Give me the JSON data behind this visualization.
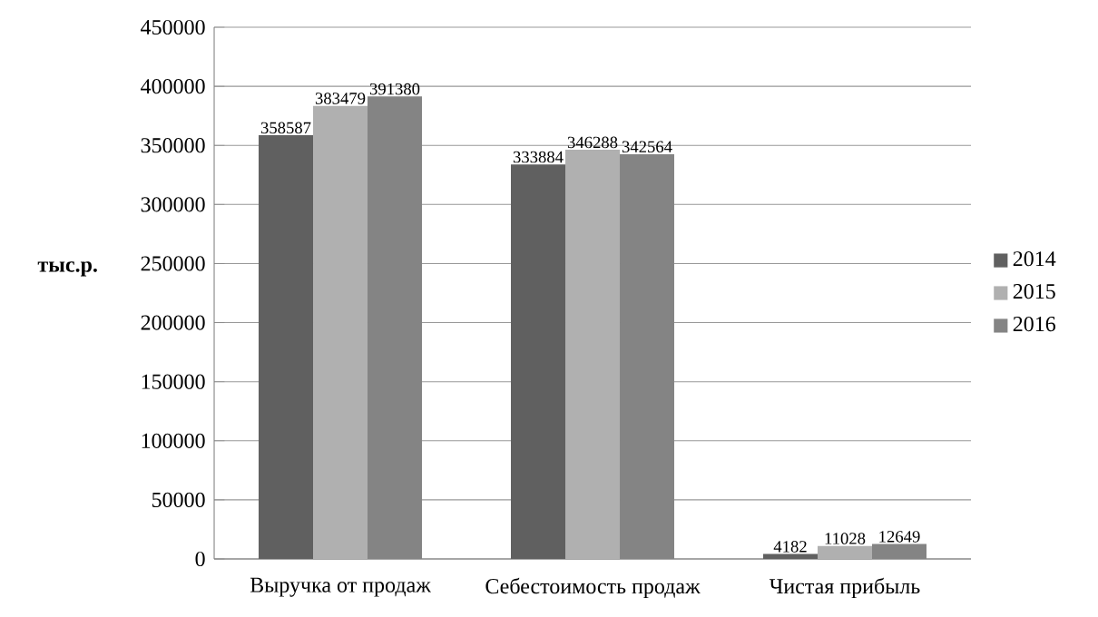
{
  "chart_data": {
    "type": "bar",
    "ylabel": "тыс.р.",
    "categories": [
      "Выручка от продаж",
      "Себестоимость продаж",
      "Чистая прибыль"
    ],
    "series": [
      {
        "name": "2014",
        "color": "#606060",
        "values": [
          358587,
          333884,
          4182
        ]
      },
      {
        "name": "2015",
        "color": "#b0b0b0",
        "values": [
          383479,
          346288,
          11028
        ]
      },
      {
        "name": "2016",
        "color": "#848484",
        "values": [
          391380,
          342564,
          12649
        ]
      }
    ],
    "ylim": [
      0,
      450000
    ],
    "yticks": [
      0,
      50000,
      100000,
      150000,
      200000,
      250000,
      300000,
      350000,
      400000,
      450000
    ],
    "grid": "y",
    "legend": "right",
    "data_labels": true
  }
}
